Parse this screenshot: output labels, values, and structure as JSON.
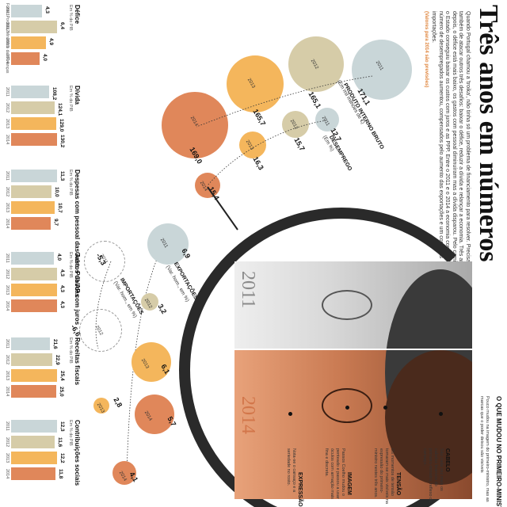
{
  "title": "Três anos em números",
  "intro": "Quando Portugal chamou a 'troika', não tinha só um problema de financiamento para resolver. Precisava também de atacar outros três desafios: baixar o défice, reduzir a dívida e relançar a economia. Três anos depois, o défice está mais baixo, os gastos com pessoal diminuíram mas a dívida disparou. Pelo caminho o Estado conseguiu baixar os custos com juros e as PPP. Entre o 2011 e o 2014 a economia contraiu e o número de desempregados aumentou, compensados pelo aumento das exportações e um corte nas importações.",
  "source_note": "(Valores para 2014 são previsões)",
  "colors": {
    "y2011": "#c9d6d8",
    "y2012": "#d6cca8",
    "y2013": "#f4b65c",
    "y2014": "#e0875a",
    "ring": "#2a2a2a"
  },
  "circles": {
    "pib": {
      "label": "PRODUTO INTERNO BRUTO",
      "unit": "(Em mil milhões de €)",
      "values": [
        {
          "year": "2011",
          "value": "171,1"
        },
        {
          "year": "2012",
          "value": "165,1"
        },
        {
          "year": "2013",
          "value": "165,7"
        },
        {
          "year": "2014",
          "value": "169,0"
        }
      ]
    },
    "desemprego": {
      "label": "DESEMPREGO",
      "unit": "(Em %)",
      "values": [
        {
          "year": "2011",
          "value": "12,7"
        },
        {
          "year": "2012",
          "value": "15,7"
        },
        {
          "year": "2013",
          "value": "16,3"
        },
        {
          "year": "2014",
          "value": "15,4"
        }
      ]
    },
    "exportacoes": {
      "label": "EXPORTAÇÕES",
      "unit": "(Var. hom., em %)",
      "values": [
        {
          "year": "2011",
          "value": "6,9"
        },
        {
          "year": "2012",
          "value": "3,2"
        },
        {
          "year": "2013",
          "value": "6,1"
        },
        {
          "year": "2014",
          "value": "5,7"
        }
      ]
    },
    "importacoes": {
      "label": "IMPORTAÇÕES",
      "unit": "(Var. hom., em %)",
      "values": [
        {
          "year": "2011",
          "value": "-5,3"
        },
        {
          "year": "2012",
          "value": "-6,6"
        },
        {
          "year": "2013",
          "value": "2,8"
        },
        {
          "year": "2014",
          "value": "4,1"
        }
      ]
    }
  },
  "portrait": {
    "year_top": "2011",
    "year_bottom": "2014",
    "heading": "O QUE MUDOU NO PRIMEIRO-MINISTRO",
    "subheading": "Pouco mudou na imagem do primeiro-ministro, mas as marcas que o poder deixou são visíveis",
    "notes": [
      {
        "title": "CABELO",
        "text": "São cada vez mais os cabelos brancos do primeiro-ministro, reflexo do cansaço."
      },
      {
        "title": "TENSÃO",
        "text": "Os momentos de tensão tornaram-se mais visíveis na expressão do primeiro-ministro nestes três anos."
      },
      {
        "title": "IMAGEM",
        "text": "Passos Coelho mudou o penteado e passou a usar óculos com armação mais fina e discreta."
      },
      {
        "title": "EXPRESSÃO",
        "text": "Nota-se o cansaço e a seriedade no rosto."
      }
    ]
  },
  "bars": [
    {
      "title": "Défice",
      "subtitle": "Em % do PIB",
      "values": [
        "4,3",
        "6,4",
        "4,9",
        "4,0"
      ]
    },
    {
      "title": "Dívida",
      "subtitle": "Em % do PIB",
      "values": [
        "108,2",
        "124,1",
        "129,0",
        "130,2"
      ]
    },
    {
      "title": "Despesas com pessoal das Adm. Públicas",
      "subtitle": "Em % do PIB",
      "values": [
        "11,3",
        "10,0",
        "10,7",
        "9,7"
      ]
    },
    {
      "title": "Gastos da AP com juros",
      "subtitle": "Em % do PIB",
      "values": [
        "4,0",
        "4,3",
        "4,3",
        "4,3"
      ]
    },
    {
      "title": "Receitas fiscais",
      "subtitle": "Em % do PIB",
      "values": [
        "21,6",
        "22,9",
        "25,4",
        "25,0"
      ]
    },
    {
      "title": "Contribuições sociais",
      "subtitle": "Em % do PIB",
      "values": [
        "12,3",
        "11,6",
        "12,2",
        "11,8"
      ]
    }
  ],
  "bar_years": [
    "2011",
    "2012",
    "2013",
    "2014"
  ],
  "bar_source": "Fonte: Pordata, Ministério das Finanças"
}
